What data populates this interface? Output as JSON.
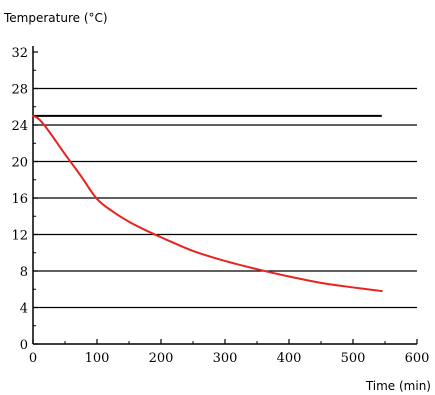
{
  "chart_data": {
    "type": "line",
    "ylabel": "Temperature (°C)",
    "xlabel": "Time (min)",
    "xlim": [
      0,
      600
    ],
    "ylim": [
      0,
      32
    ],
    "x_ticks": [
      0,
      100,
      200,
      300,
      400,
      500,
      600
    ],
    "y_ticks": [
      0,
      4,
      8,
      12,
      16,
      20,
      24,
      28,
      32
    ],
    "grid": "horizontal",
    "series": [
      {
        "color": "#e8231f",
        "x": [
          0,
          10,
          25,
          50,
          75,
          100,
          125,
          150,
          175,
          200,
          250,
          300,
          350,
          400,
          450,
          500,
          545
        ],
        "y": [
          25,
          24.6,
          23.3,
          20.8,
          18.4,
          15.9,
          14.5,
          13.4,
          12.5,
          11.7,
          10.2,
          9.1,
          8.2,
          7.4,
          6.7,
          6.2,
          5.8
        ]
      }
    ],
    "reference_line": {
      "y": 25,
      "x_start": 0,
      "x_end": 545,
      "color": "#000000"
    }
  }
}
